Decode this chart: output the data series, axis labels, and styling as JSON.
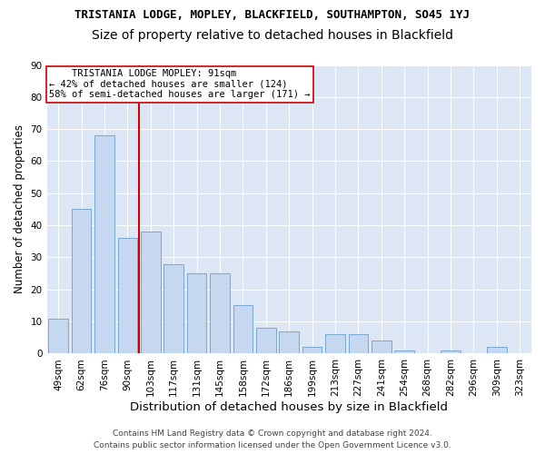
{
  "title": "TRISTANIA LODGE, MOPLEY, BLACKFIELD, SOUTHAMPTON, SO45 1YJ",
  "subtitle": "Size of property relative to detached houses in Blackfield",
  "xlabel": "Distribution of detached houses by size in Blackfield",
  "ylabel": "Number of detached properties",
  "categories": [
    "49sqm",
    "62sqm",
    "76sqm",
    "90sqm",
    "103sqm",
    "117sqm",
    "131sqm",
    "145sqm",
    "158sqm",
    "172sqm",
    "186sqm",
    "199sqm",
    "213sqm",
    "227sqm",
    "241sqm",
    "254sqm",
    "268sqm",
    "282sqm",
    "296sqm",
    "309sqm",
    "323sqm"
  ],
  "values": [
    11,
    45,
    68,
    36,
    38,
    28,
    25,
    25,
    15,
    8,
    7,
    2,
    6,
    6,
    4,
    1,
    0,
    1,
    0,
    2,
    0
  ],
  "bar_color": "#c5d8f0",
  "bar_edge_color": "#7aa8d4",
  "vline_color": "#cc0000",
  "annotation_line1": "    TRISTANIA LODGE MOPLEY: 91sqm",
  "annotation_line2": "← 42% of detached houses are smaller (124)",
  "annotation_line3": "58% of semi-detached houses are larger (171) →",
  "annotation_box_color": "#ffffff",
  "annotation_box_edge_color": "#cc0000",
  "ylim": [
    0,
    90
  ],
  "yticks": [
    0,
    10,
    20,
    30,
    40,
    50,
    60,
    70,
    80,
    90
  ],
  "background_color": "#dce6f5",
  "grid_color": "#ffffff",
  "footer_line1": "Contains HM Land Registry data © Crown copyright and database right 2024.",
  "footer_line2": "Contains public sector information licensed under the Open Government Licence v3.0.",
  "fig_bg": "#ffffff",
  "title_fontsize": 9,
  "subtitle_fontsize": 10,
  "xlabel_fontsize": 9.5,
  "ylabel_fontsize": 8.5,
  "tick_fontsize": 7.5,
  "annot_fontsize": 7.5,
  "footer_fontsize": 6.5
}
